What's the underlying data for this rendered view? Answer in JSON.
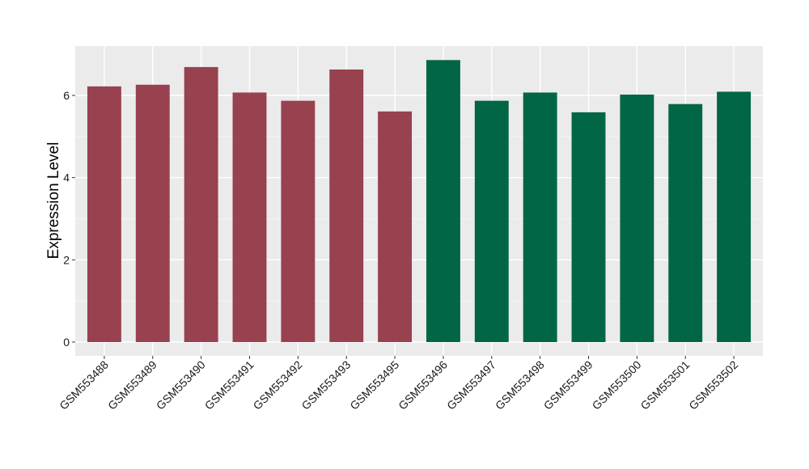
{
  "chart_data": {
    "type": "bar",
    "title": "",
    "xlabel": "",
    "ylabel": "Expression Level",
    "ylim": [
      0,
      7.2
    ],
    "yticks": [
      0,
      2,
      4,
      6
    ],
    "ytick_labels": [
      "0",
      "2",
      "4",
      "6"
    ],
    "grid": true,
    "categories": [
      "GSM553488",
      "GSM553489",
      "GSM553490",
      "GSM553491",
      "GSM553492",
      "GSM553493",
      "GSM553495",
      "GSM553496",
      "GSM553497",
      "GSM553498",
      "GSM553499",
      "GSM553500",
      "GSM553501",
      "GSM553502"
    ],
    "values": [
      6.22,
      6.26,
      6.69,
      6.07,
      5.87,
      6.63,
      5.61,
      6.86,
      5.87,
      6.07,
      5.59,
      6.02,
      5.79,
      6.09
    ],
    "bar_colors": [
      "#98414f",
      "#98414f",
      "#98414f",
      "#98414f",
      "#98414f",
      "#98414f",
      "#98414f",
      "#016645",
      "#016645",
      "#016645",
      "#016645",
      "#016645",
      "#016645",
      "#016645"
    ]
  }
}
